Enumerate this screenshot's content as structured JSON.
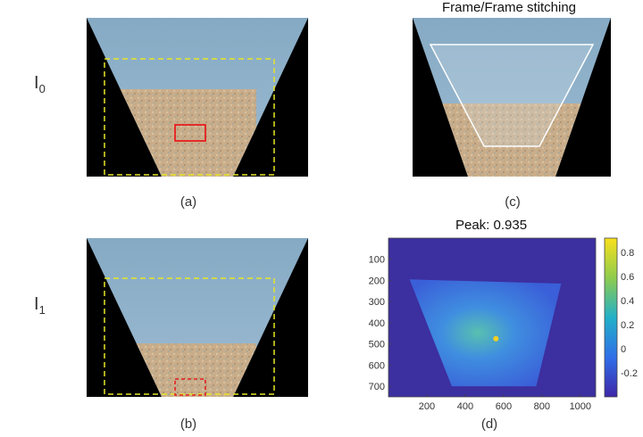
{
  "figure": {
    "label_i0_base": "I",
    "label_i0_sub": "0",
    "label_i1_base": "I",
    "label_i1_sub": "1",
    "caption_a": "(a)",
    "caption_b": "(b)",
    "caption_c": "(c)",
    "caption_d": "(d)",
    "title_c": "Frame/Frame stitching",
    "colors": {
      "sky": "#8fb2cc",
      "ground": "#c9ad8a",
      "background": "#000000",
      "roi_dashed": "#e6e626",
      "match_box": "#e61e1e",
      "overlay_outline": "#ffffff"
    }
  },
  "chart_data": {
    "type": "heatmap",
    "title": "Peak: 0.935",
    "xlabel": "",
    "ylabel": "",
    "xlim": [
      0,
      1080
    ],
    "ylim": [
      750,
      0
    ],
    "x_ticks": [
      200,
      400,
      600,
      800,
      1000
    ],
    "y_ticks": [
      100,
      200,
      300,
      400,
      500,
      600,
      700
    ],
    "colorbar": {
      "range": [
        -0.4,
        0.92
      ],
      "ticks": [
        0.8,
        0.6,
        0.4,
        0.2,
        0,
        -0.2
      ],
      "tick_labels": [
        "0.8",
        "0.6",
        "0.4",
        "0.2",
        "0",
        "-0.2"
      ]
    },
    "peak_value": 0.935,
    "peak_location": [
      560,
      475
    ]
  }
}
